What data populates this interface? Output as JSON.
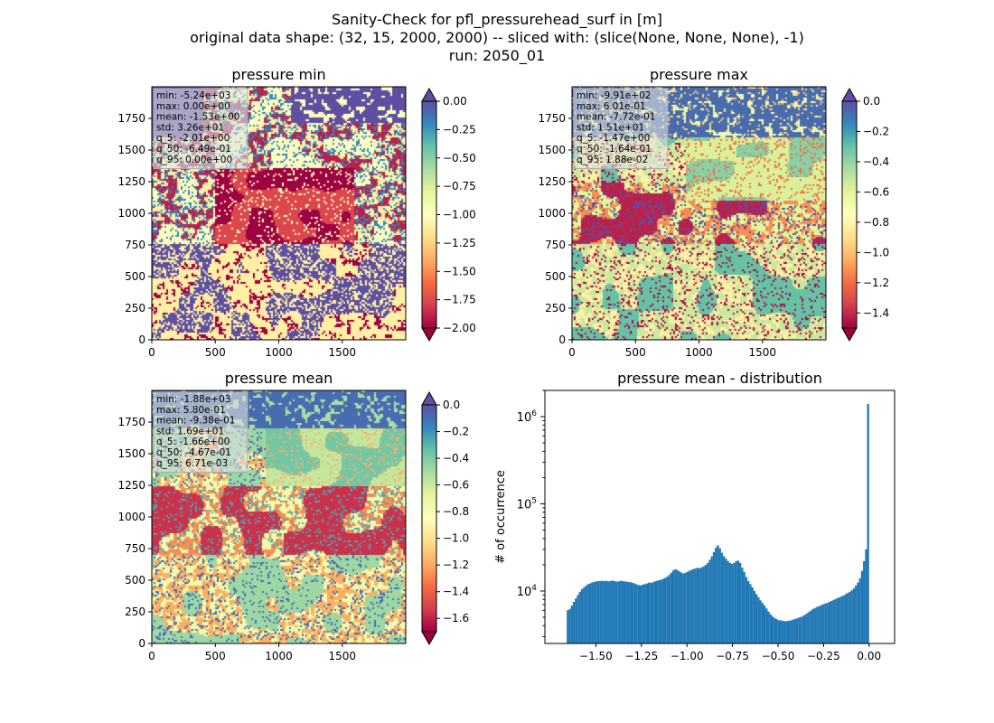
{
  "figure": {
    "title_lines": [
      "Sanity-Check for pfl_pressurehead_surf in [m]",
      "original data shape: (32, 15, 2000, 2000) -- sliced with: (slice(None, None, None), -1)",
      "run: 2050_01"
    ]
  },
  "colors": {
    "spectral": [
      "#9e0142",
      "#d53e4f",
      "#f46d43",
      "#fdae61",
      "#fee08b",
      "#ffffbf",
      "#e6f598",
      "#abdda4",
      "#66c2a5",
      "#3288bd",
      "#5e4fa2"
    ],
    "hist_bar": "#1f77b4",
    "stats_box": "#e0e0e0"
  },
  "chart_data": [
    {
      "type": "heatmap",
      "title": "pressure min",
      "colormap": "Spectral",
      "xlim": [
        0,
        2000
      ],
      "ylim": [
        0,
        2000
      ],
      "x_ticks": [
        0,
        500,
        1000,
        1500
      ],
      "y_ticks": [
        0,
        250,
        500,
        750,
        1000,
        1250,
        1500,
        1750
      ],
      "colorbar": {
        "vmin": -2.0,
        "vmax": 0.0,
        "ticks": [
          "0.00",
          "−0.25",
          "−0.50",
          "−0.75",
          "−1.00",
          "−1.25",
          "−1.50",
          "−1.75",
          "−2.00"
        ],
        "extend": "both"
      },
      "stats": [
        "min: -5.24e+03",
        "max: 0.00e+00",
        "mean: -1.53e+00",
        "std: 3.26e+01",
        "q_5: -2.01e+00",
        "q_50: -6.49e-01",
        "q_95: 0.00e+00"
      ]
    },
    {
      "type": "heatmap",
      "title": "pressure max",
      "colormap": "Spectral",
      "xlim": [
        0,
        2000
      ],
      "ylim": [
        0,
        2000
      ],
      "x_ticks": [
        0,
        500,
        1000,
        1500
      ],
      "y_ticks": [
        0,
        250,
        500,
        750,
        1000,
        1250,
        1500,
        1750
      ],
      "colorbar": {
        "vmin": -1.5,
        "vmax": 0.0,
        "ticks": [
          "0.0",
          "−0.2",
          "−0.4",
          "−0.6",
          "−0.8",
          "−1.0",
          "−1.2",
          "−1.4"
        ],
        "extend": "both"
      },
      "stats": [
        "min: -9.91e+02",
        "max: 6.01e-01",
        "mean: -7.72e-01",
        "std: 1.51e+01",
        "q_5: -1.47e+00",
        "q_50: -1.64e-01",
        "q_95: 1.88e-02"
      ]
    },
    {
      "type": "heatmap",
      "title": "pressure mean",
      "colormap": "Spectral",
      "xlim": [
        0,
        2000
      ],
      "ylim": [
        0,
        2000
      ],
      "x_ticks": [
        0,
        500,
        1000,
        1500
      ],
      "y_ticks": [
        0,
        250,
        500,
        750,
        1000,
        1250,
        1500,
        1750
      ],
      "colorbar": {
        "vmin": -1.7,
        "vmax": 0.0,
        "ticks": [
          "0.0",
          "−0.2",
          "−0.4",
          "−0.6",
          "−0.8",
          "−1.0",
          "−1.2",
          "−1.4",
          "−1.6"
        ],
        "extend": "both"
      },
      "stats": [
        "min: -1.88e+03",
        "max: 5.80e-01",
        "mean: -9.38e-01",
        "std: 1.69e+01",
        "q_5: -1.66e+00",
        "q_50: -4.67e-01",
        "q_95: 6.71e-03"
      ]
    },
    {
      "type": "bar",
      "title": "pressure mean - distribution",
      "ylabel": "# of occurrence",
      "yscale": "log",
      "xlim": [
        -1.78,
        0.14
      ],
      "ylim": [
        2500,
        2000000
      ],
      "x_ticks": [
        "−1.50",
        "−1.25",
        "−1.00",
        "−0.75",
        "−0.50",
        "−0.25",
        "0.00"
      ],
      "y_ticks": [
        "10",
        "10",
        "10"
      ],
      "y_tick_exponents": [
        "4",
        "5",
        "6"
      ],
      "bin_start": -1.66,
      "bin_end": 0.0,
      "counts": [
        6000,
        6200,
        6800,
        7500,
        8200,
        9000,
        9800,
        10500,
        11000,
        11500,
        12000,
        12200,
        12500,
        12700,
        12900,
        13000,
        13000,
        13100,
        13000,
        13100,
        12900,
        13000,
        13200,
        13000,
        12800,
        12900,
        13100,
        13000,
        12900,
        12800,
        12700,
        12600,
        12400,
        12200,
        11900,
        11700,
        11600,
        11800,
        12000,
        12200,
        12500,
        12400,
        12600,
        12900,
        13100,
        13300,
        13500,
        13800,
        14100,
        14600,
        15300,
        16200,
        17200,
        17800,
        17400,
        16800,
        16300,
        15900,
        16200,
        16600,
        17100,
        17500,
        17900,
        18100,
        18500,
        18200,
        18700,
        19200,
        19900,
        21000,
        22800,
        25000,
        28000,
        31500,
        33500,
        31000,
        27500,
        25000,
        23500,
        22000,
        21000,
        20500,
        21000,
        22000,
        22300,
        21000,
        18500,
        16500,
        14500,
        13000,
        12000,
        11000,
        10000,
        9200,
        8500,
        7800,
        7300,
        6800,
        6300,
        5800,
        5400,
        5100,
        4900,
        4750,
        4620,
        4600,
        4550,
        4500,
        4520,
        4560,
        4600,
        4700,
        4760,
        4850,
        4950,
        5050,
        5200,
        5350,
        5550,
        5800,
        6000,
        6250,
        6400,
        6600,
        6700,
        6900,
        7050,
        7200,
        7300,
        7500,
        7700,
        7900,
        8100,
        8300,
        8500,
        8700,
        8900,
        9200,
        9500,
        9800,
        10200,
        10700,
        11500,
        12500,
        14000,
        17000,
        22000,
        30000,
        1400000
      ]
    }
  ]
}
